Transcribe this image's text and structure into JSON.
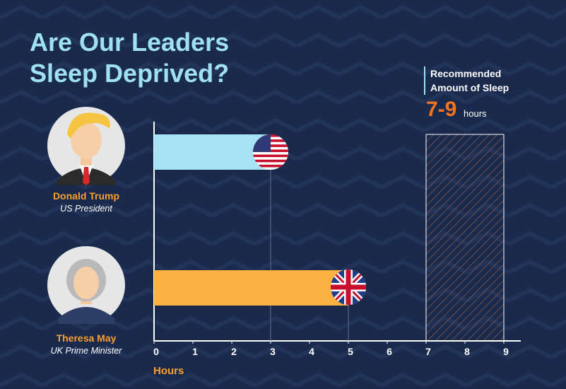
{
  "chart_data": {
    "type": "bar",
    "orientation": "horizontal",
    "title": "Are Our Leaders Sleep Deprived?",
    "categories": [
      "Donald Trump",
      "Theresa May"
    ],
    "roles": [
      "US President",
      "UK Prime Minister"
    ],
    "values": [
      3,
      5
    ],
    "colors": [
      "#a6e3f4",
      "#fbb241"
    ],
    "xlim": [
      0,
      9
    ],
    "xticks": [
      0,
      1,
      2,
      3,
      4,
      5,
      6,
      7,
      8,
      9
    ],
    "xlabel": "Hours",
    "annotation": "Recommended Amount of Sleep",
    "recommended": [
      7,
      9
    ],
    "recommended_label": "7-9",
    "recommended_unit": "hours"
  }
}
